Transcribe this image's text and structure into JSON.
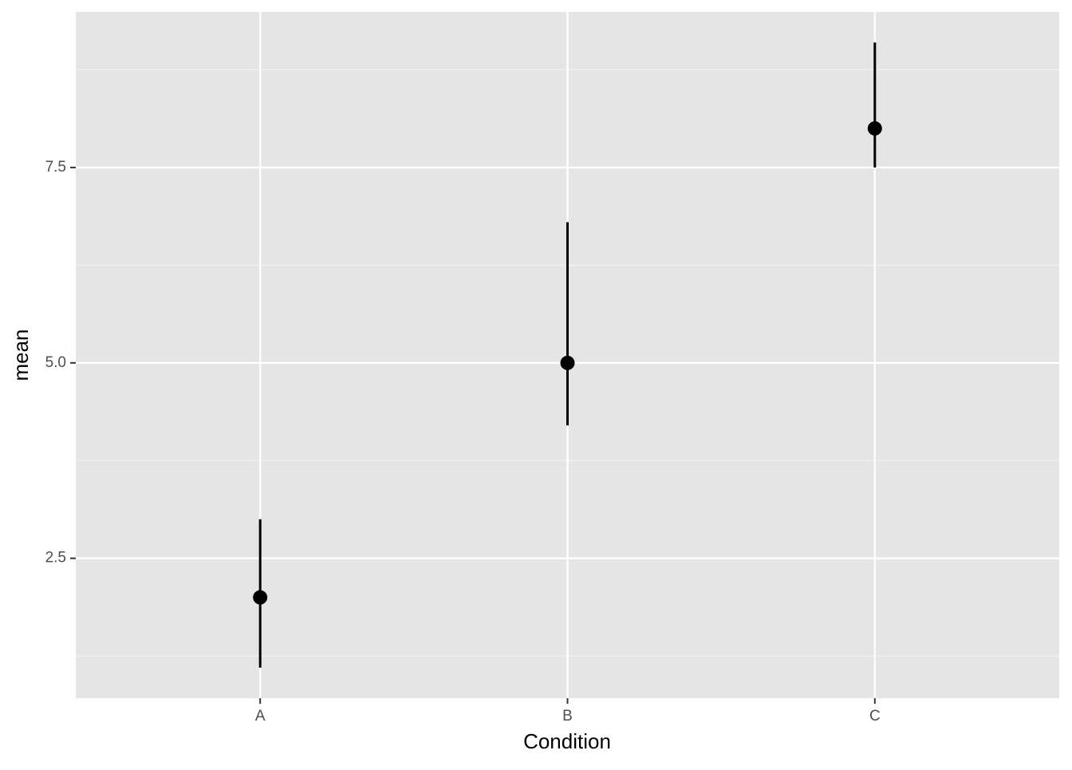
{
  "chart_data": {
    "type": "pointrange",
    "x_label": "Condition",
    "y_label": "mean",
    "categories": [
      "A",
      "B",
      "C"
    ],
    "series": [
      {
        "values": [
          2,
          5,
          8
        ],
        "lower": [
          1.1,
          4.2,
          7.5
        ],
        "upper": [
          3.0,
          6.8,
          9.1
        ],
        "color": "#000000"
      }
    ],
    "ylim": [
      0.71,
      9.49
    ],
    "yticks": [
      2.5,
      {
        "value": 5,
        "label": "5.0"
      },
      7.5
    ],
    "grid": true
  }
}
